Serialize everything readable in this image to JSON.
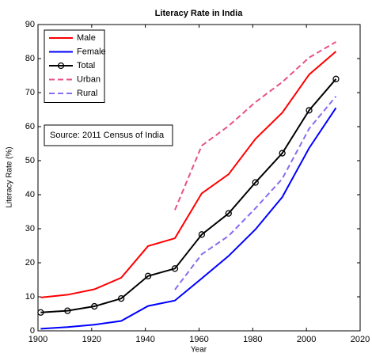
{
  "chart_data": {
    "type": "line",
    "title": "Literacy Rate in India",
    "xlabel": "Year",
    "ylabel": "Literacy Rate (%)",
    "annotation": "Source: 2011 Census of India",
    "x": [
      1901,
      1911,
      1921,
      1931,
      1941,
      1951,
      1961,
      1971,
      1981,
      1991,
      2001,
      2011
    ],
    "series": [
      {
        "name": "Male",
        "color": "#ff0000",
        "linestyle": "solid",
        "values": [
          9.8,
          10.6,
          12.2,
          15.6,
          24.9,
          27.2,
          40.4,
          46.0,
          56.4,
          64.1,
          75.3,
          82.1
        ]
      },
      {
        "name": "Female",
        "color": "#0000ff",
        "linestyle": "solid",
        "values": [
          0.6,
          1.1,
          1.8,
          2.9,
          7.3,
          8.9,
          15.4,
          22.0,
          29.8,
          39.3,
          53.7,
          65.5
        ]
      },
      {
        "name": "Total",
        "color": "#000000",
        "linestyle": "solid",
        "marker": "circle",
        "values": [
          5.4,
          5.9,
          7.2,
          9.5,
          16.1,
          18.3,
          28.3,
          34.5,
          43.6,
          52.2,
          64.8,
          74.0
        ]
      },
      {
        "name": "Urban",
        "color": "#e8508a",
        "linestyle": "dashed",
        "values": [
          null,
          null,
          null,
          null,
          null,
          35.5,
          54.4,
          60.2,
          67.2,
          73.1,
          80.3,
          84.9
        ]
      },
      {
        "name": "Rural",
        "color": "#8a6cf0",
        "linestyle": "dashed",
        "values": [
          null,
          null,
          null,
          null,
          null,
          12.1,
          22.5,
          27.9,
          36.0,
          44.7,
          59.4,
          68.9
        ]
      }
    ],
    "xlim": [
      1900,
      2020
    ],
    "xticks": [
      1900,
      1920,
      1940,
      1960,
      1980,
      2000,
      2020
    ],
    "ylim": [
      0,
      90
    ],
    "yticks": [
      0,
      10,
      20,
      30,
      40,
      50,
      60,
      70,
      80,
      90
    ],
    "legend": "upper left"
  }
}
